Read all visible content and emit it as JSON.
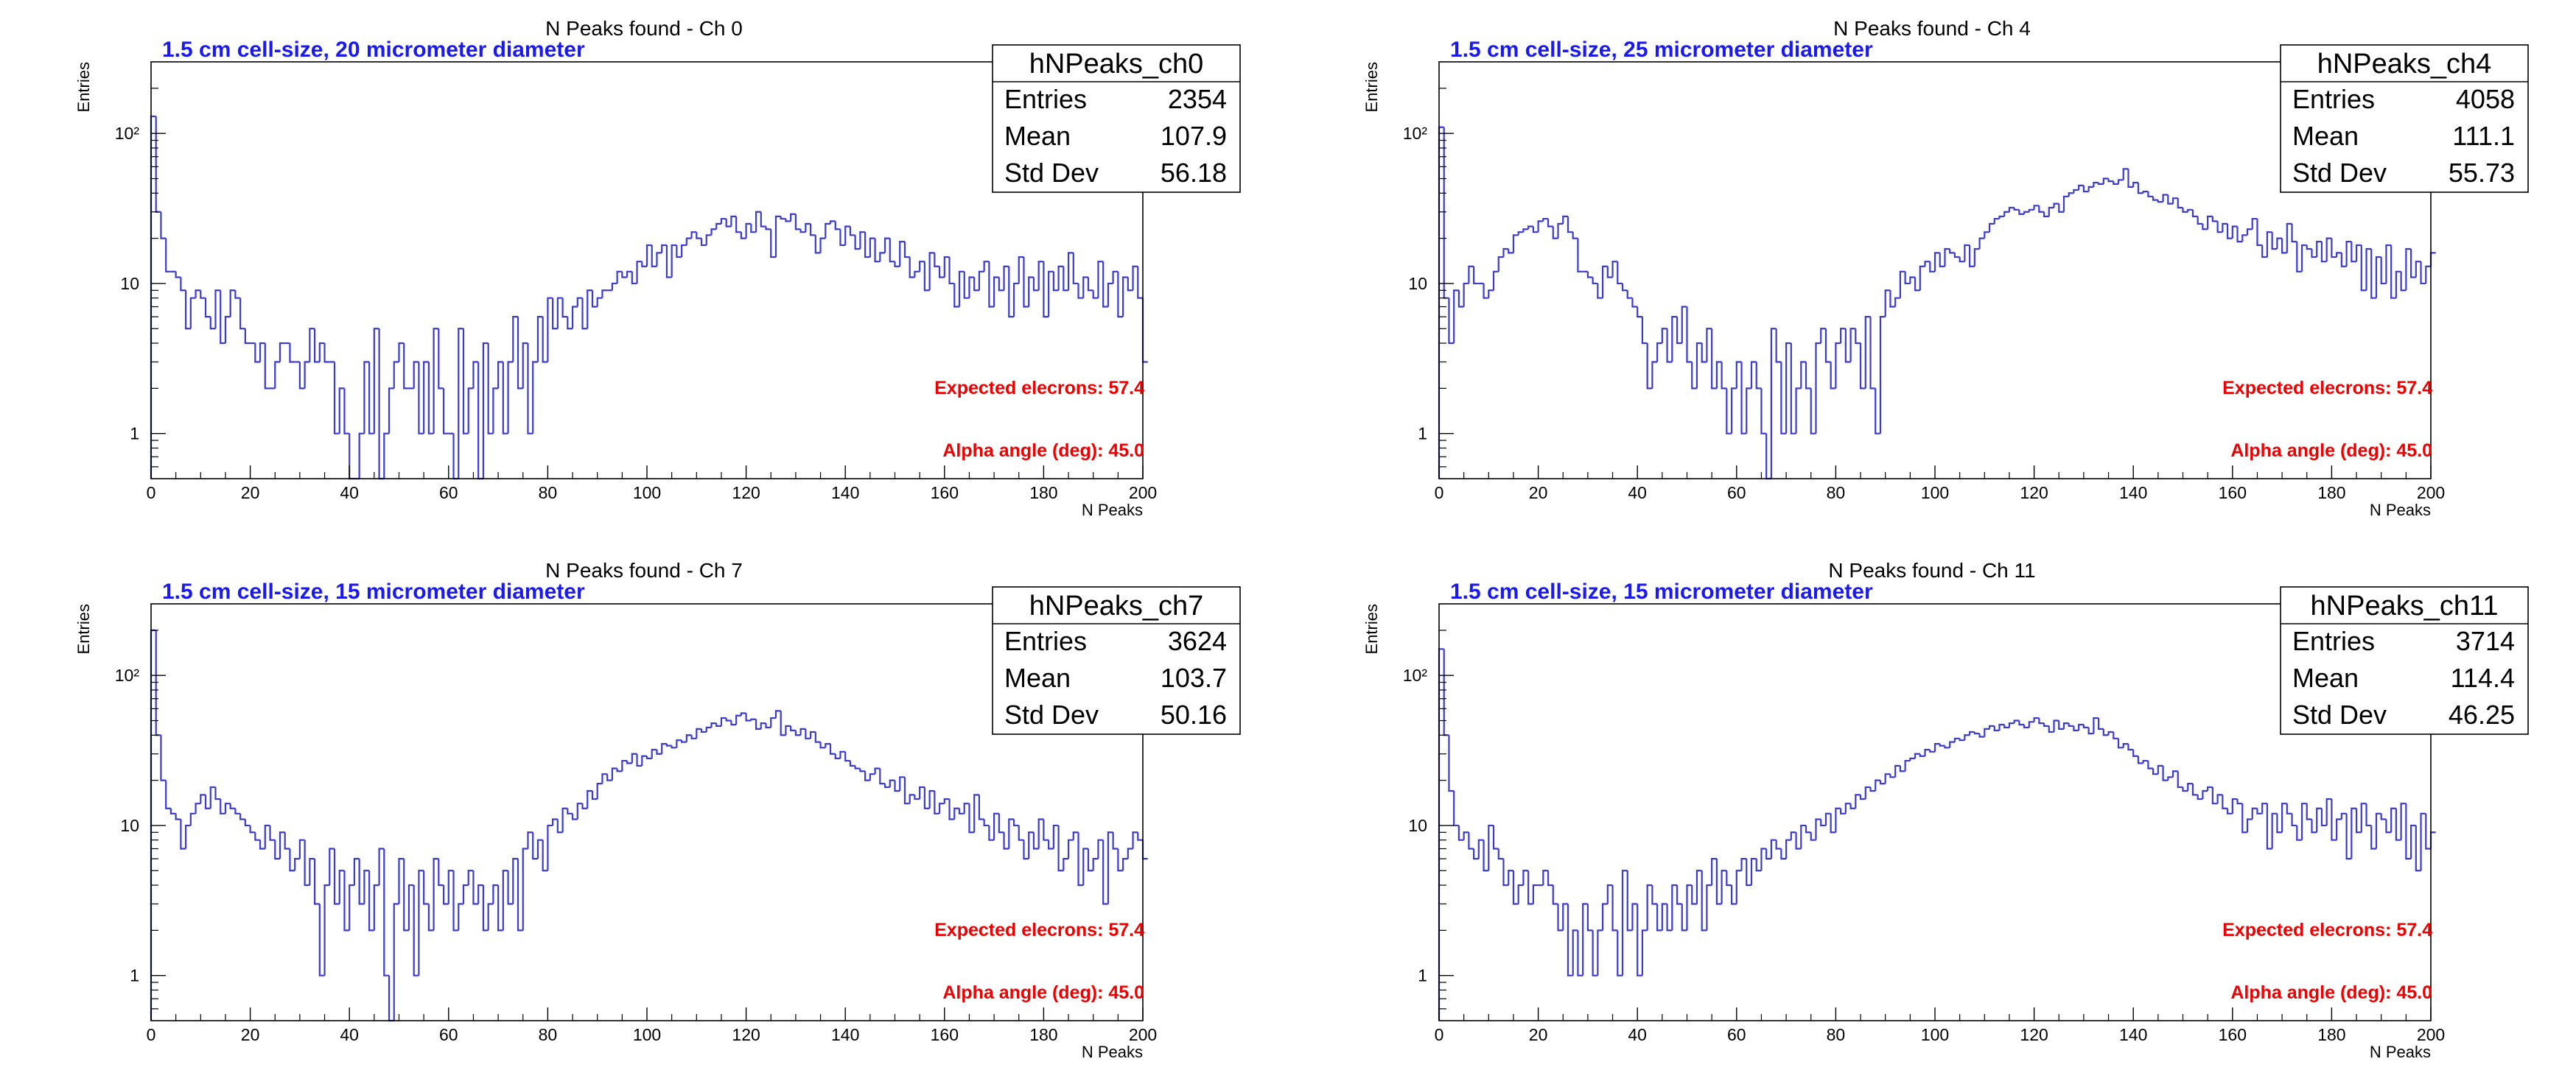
{
  "colors": {
    "histogram": "#3b3bcc",
    "subtitle": "#1a1aee",
    "annotation": "#ee0000",
    "axis": "#000000"
  },
  "chart_data": [
    {
      "type": "bar",
      "style": "step-histogram",
      "log_y": true,
      "grid": false,
      "title": "N Peaks found - Ch 0",
      "subtitle": "1.5 cm cell-size, 20 micrometer diameter",
      "xlabel": "N Peaks",
      "ylabel": "Entries",
      "xlim": [
        0,
        200
      ],
      "ylim": [
        0.5,
        300
      ],
      "xticks": [
        "0",
        "20",
        "40",
        "60",
        "80",
        "100",
        "120",
        "140",
        "160",
        "180",
        "200"
      ],
      "yticks": [
        {
          "v": 1,
          "label": "1"
        },
        {
          "v": 10,
          "label": "10"
        },
        {
          "v": 100,
          "label": "10²"
        }
      ],
      "stats": {
        "name": "hNPeaks_ch0",
        "rows": [
          {
            "label": "Entries",
            "value": "2354"
          },
          {
            "label": "Mean",
            "value": "107.9"
          },
          {
            "label": "Std Dev",
            "value": "56.18"
          }
        ]
      },
      "annotations": [
        "Expected elecrons: 57.4",
        "Alpha angle (deg): 45.0"
      ],
      "bin_width": 1,
      "values": [
        130,
        30,
        20,
        12,
        12,
        11,
        9,
        5,
        8,
        9,
        8,
        6,
        5,
        9,
        4,
        6,
        9,
        8,
        5,
        4,
        4,
        3,
        4,
        2,
        2,
        3,
        4,
        4,
        3,
        3,
        2,
        3,
        5,
        3,
        4,
        3,
        3,
        1,
        2,
        1,
        0,
        0,
        1,
        3,
        1,
        5,
        0,
        1,
        2,
        3,
        4,
        2,
        2,
        3,
        1,
        3,
        1,
        5,
        2,
        1,
        1,
        0,
        5,
        1,
        2,
        3,
        0,
        4,
        1,
        2,
        3,
        1,
        3,
        6,
        2,
        4,
        1,
        3,
        6,
        3,
        8,
        5,
        8,
        6,
        5,
        7,
        8,
        5,
        9,
        7,
        8,
        9,
        9,
        10,
        12,
        11,
        12,
        10,
        14,
        13,
        18,
        13,
        16,
        18,
        11,
        18,
        15,
        18,
        20,
        22,
        20,
        18,
        21,
        23,
        25,
        27,
        24,
        28,
        22,
        20,
        25,
        22,
        30,
        24,
        23,
        15,
        28,
        27,
        26,
        29,
        23,
        22,
        25,
        21,
        16,
        20,
        25,
        26,
        23,
        18,
        24,
        21,
        17,
        22,
        15,
        20,
        14,
        16,
        20,
        14,
        13,
        19,
        15,
        11,
        12,
        14,
        9,
        16,
        13,
        11,
        15,
        10,
        7,
        12,
        8,
        11,
        9,
        12,
        14,
        7,
        11,
        9,
        13,
        6,
        10,
        15,
        7,
        11,
        9,
        14,
        6,
        12,
        9,
        13,
        9,
        16,
        10,
        8,
        11,
        9,
        8,
        14,
        7,
        10,
        12,
        6,
        11,
        9,
        13,
        8,
        3
      ]
    },
    {
      "type": "bar",
      "style": "step-histogram",
      "log_y": true,
      "grid": false,
      "title": "N Peaks found - Ch 4",
      "subtitle": "1.5 cm cell-size, 25 micrometer diameter",
      "xlabel": "N Peaks",
      "ylabel": "Entries",
      "xlim": [
        0,
        200
      ],
      "ylim": [
        0.5,
        300
      ],
      "xticks": [
        "0",
        "20",
        "40",
        "60",
        "80",
        "100",
        "120",
        "140",
        "160",
        "180",
        "200"
      ],
      "yticks": [
        {
          "v": 1,
          "label": "1"
        },
        {
          "v": 10,
          "label": "10"
        },
        {
          "v": 100,
          "label": "10²"
        }
      ],
      "stats": {
        "name": "hNPeaks_ch4",
        "rows": [
          {
            "label": "Entries",
            "value": "4058"
          },
          {
            "label": "Mean",
            "value": "111.1"
          },
          {
            "label": "Std Dev",
            "value": "55.73"
          }
        ]
      },
      "annotations": [
        "Expected elecrons: 57.4",
        "Alpha angle (deg): 45.0"
      ],
      "bin_width": 1,
      "values": [
        110,
        8,
        4,
        9,
        7,
        10,
        13,
        10,
        10,
        8,
        9,
        12,
        15,
        17,
        16,
        21,
        22,
        23,
        24,
        22,
        26,
        27,
        24,
        20,
        25,
        28,
        22,
        20,
        12,
        12,
        11,
        10,
        8,
        13,
        11,
        14,
        10,
        9,
        8,
        7,
        6,
        4,
        2,
        3,
        4,
        5,
        3,
        6,
        4,
        7,
        3,
        2,
        4,
        3,
        5,
        2,
        3,
        2,
        1,
        2,
        3,
        1,
        2,
        3,
        2,
        1,
        0,
        5,
        3,
        1,
        4,
        1,
        2,
        3,
        2,
        1,
        4,
        5,
        3,
        2,
        4,
        5,
        3,
        5,
        4,
        2,
        6,
        2,
        1,
        6,
        9,
        7,
        8,
        12,
        10,
        11,
        9,
        13,
        14,
        12,
        16,
        13,
        17,
        16,
        15,
        14,
        18,
        13,
        17,
        20,
        22,
        25,
        27,
        28,
        30,
        32,
        31,
        29,
        30,
        31,
        33,
        30,
        28,
        32,
        34,
        30,
        38,
        40,
        42,
        45,
        41,
        44,
        47,
        46,
        50,
        48,
        46,
        49,
        58,
        44,
        47,
        40,
        41,
        38,
        36,
        35,
        39,
        34,
        37,
        32,
        30,
        31,
        28,
        25,
        23,
        28,
        26,
        22,
        25,
        20,
        24,
        19,
        21,
        23,
        27,
        18,
        15,
        22,
        17,
        20,
        16,
        25,
        19,
        12,
        18,
        17,
        15,
        19,
        14,
        20,
        15,
        16,
        13,
        19,
        14,
        18,
        9,
        17,
        8,
        15,
        10,
        18,
        8,
        12,
        9,
        17,
        11,
        14,
        10,
        13,
        16
      ]
    },
    {
      "type": "bar",
      "style": "step-histogram",
      "log_y": true,
      "grid": false,
      "title": "N Peaks found - Ch 7",
      "subtitle": "1.5 cm cell-size, 15 micrometer diameter",
      "xlabel": "N Peaks",
      "ylabel": "Entries",
      "xlim": [
        0,
        200
      ],
      "ylim": [
        0.5,
        300
      ],
      "xticks": [
        "0",
        "20",
        "40",
        "60",
        "80",
        "100",
        "120",
        "140",
        "160",
        "180",
        "200"
      ],
      "yticks": [
        {
          "v": 1,
          "label": "1"
        },
        {
          "v": 10,
          "label": "10"
        },
        {
          "v": 100,
          "label": "10²"
        }
      ],
      "stats": {
        "name": "hNPeaks_ch7",
        "rows": [
          {
            "label": "Entries",
            "value": "3624"
          },
          {
            "label": "Mean",
            "value": "103.7"
          },
          {
            "label": "Std Dev",
            "value": "50.16"
          }
        ]
      },
      "annotations": [
        "Expected elecrons: 57.4",
        "Alpha angle (deg): 45.0"
      ],
      "bin_width": 1,
      "values": [
        200,
        40,
        20,
        13,
        12,
        11,
        7,
        10,
        12,
        14,
        16,
        13,
        18,
        15,
        12,
        14,
        13,
        12,
        11,
        10,
        9,
        8,
        7,
        10,
        8,
        6,
        9,
        7,
        5,
        6,
        8,
        4,
        6,
        3,
        1,
        4,
        7,
        3,
        5,
        2,
        4,
        6,
        3,
        5,
        2,
        4,
        7,
        1,
        0,
        3,
        6,
        2,
        4,
        1,
        5,
        3,
        2,
        6,
        4,
        3,
        5,
        2,
        3,
        4,
        5,
        3,
        4,
        2,
        3,
        4,
        2,
        5,
        3,
        6,
        2,
        7,
        9,
        6,
        8,
        5,
        10,
        11,
        9,
        13,
        12,
        11,
        14,
        13,
        17,
        15,
        19,
        22,
        20,
        24,
        23,
        27,
        26,
        30,
        25,
        29,
        28,
        32,
        30,
        35,
        34,
        33,
        37,
        36,
        40,
        38,
        44,
        42,
        45,
        48,
        46,
        52,
        50,
        47,
        54,
        56,
        50,
        51,
        44,
        48,
        45,
        52,
        58,
        40,
        46,
        43,
        40,
        44,
        38,
        42,
        36,
        33,
        35,
        30,
        28,
        31,
        27,
        25,
        24,
        23,
        20,
        22,
        24,
        19,
        18,
        20,
        17,
        21,
        14,
        16,
        15,
        18,
        13,
        17,
        12,
        14,
        15,
        11,
        13,
        12,
        14,
        9,
        16,
        11,
        10,
        8,
        12,
        9,
        7,
        11,
        10,
        8,
        6,
        9,
        7,
        11,
        8,
        7,
        10,
        5,
        6,
        8,
        9,
        4,
        7,
        5,
        6,
        8,
        3,
        9,
        7,
        5,
        6,
        7,
        9,
        8,
        6
      ]
    },
    {
      "type": "bar",
      "style": "step-histogram",
      "log_y": true,
      "grid": false,
      "title": "N Peaks found - Ch 11",
      "subtitle": "1.5 cm cell-size, 15 micrometer diameter",
      "xlabel": "N Peaks",
      "ylabel": "Entries",
      "xlim": [
        0,
        200
      ],
      "ylim": [
        0.5,
        300
      ],
      "xticks": [
        "0",
        "20",
        "40",
        "60",
        "80",
        "100",
        "120",
        "140",
        "160",
        "180",
        "200"
      ],
      "yticks": [
        {
          "v": 1,
          "label": "1"
        },
        {
          "v": 10,
          "label": "10"
        },
        {
          "v": 100,
          "label": "10²"
        }
      ],
      "stats": {
        "name": "hNPeaks_ch11",
        "rows": [
          {
            "label": "Entries",
            "value": "3714"
          },
          {
            "label": "Mean",
            "value": "114.4"
          },
          {
            "label": "Std Dev",
            "value": "46.25"
          }
        ]
      },
      "annotations": [
        "Expected elecrons: 57.4",
        "Alpha angle (deg): 45.0"
      ],
      "bin_width": 1,
      "values": [
        150,
        40,
        17,
        10,
        8,
        9,
        7,
        6,
        8,
        5,
        10,
        7,
        6,
        4,
        5,
        3,
        4,
        5,
        3,
        4,
        4,
        5,
        4,
        3,
        2,
        3,
        1,
        2,
        1,
        3,
        2,
        1,
        2,
        3,
        4,
        2,
        1,
        5,
        2,
        3,
        1,
        2,
        4,
        3,
        2,
        3,
        2,
        4,
        3,
        2,
        4,
        3,
        5,
        2,
        4,
        6,
        3,
        5,
        4,
        3,
        5,
        6,
        4,
        6,
        5,
        7,
        6,
        8,
        7,
        6,
        8,
        9,
        7,
        10,
        9,
        8,
        11,
        10,
        12,
        9,
        13,
        12,
        14,
        13,
        16,
        15,
        18,
        17,
        20,
        19,
        22,
        21,
        25,
        23,
        27,
        28,
        30,
        29,
        32,
        31,
        35,
        34,
        33,
        36,
        38,
        37,
        40,
        42,
        41,
        39,
        44,
        46,
        43,
        47,
        45,
        48,
        50,
        47,
        45,
        49,
        52,
        48,
        46,
        42,
        50,
        44,
        48,
        46,
        43,
        47,
        45,
        41,
        52,
        44,
        40,
        42,
        38,
        33,
        35,
        32,
        29,
        26,
        27,
        24,
        22,
        25,
        20,
        21,
        23,
        18,
        17,
        19,
        16,
        15,
        17,
        18,
        14,
        16,
        13,
        12,
        15,
        14,
        9,
        11,
        13,
        12,
        14,
        7,
        12,
        9,
        14,
        12,
        10,
        8,
        14,
        11,
        9,
        13,
        10,
        15,
        8,
        11,
        12,
        6,
        13,
        9,
        14,
        10,
        7,
        12,
        11,
        9,
        13,
        8,
        14,
        6,
        10,
        5,
        12,
        7,
        9
      ]
    }
  ]
}
